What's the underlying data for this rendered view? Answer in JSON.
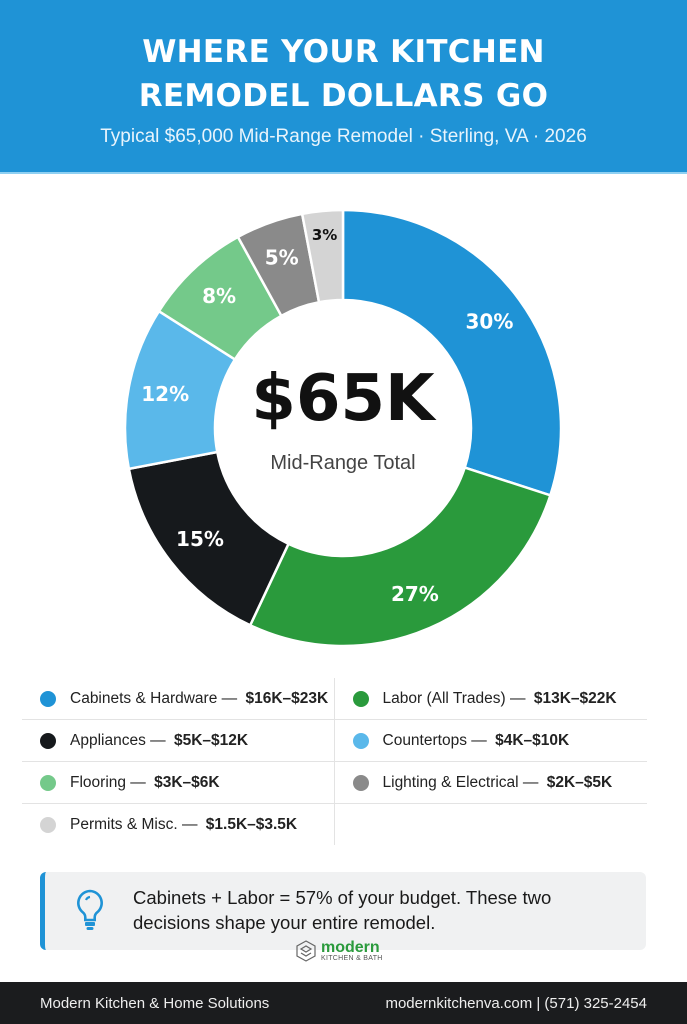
{
  "header": {
    "title_line1": "WHERE YOUR KITCHEN",
    "title_line2": "REMODEL DOLLARS GO",
    "subtitle": "Typical $65,000 Mid-Range Remodel · Sterling, VA · 2026"
  },
  "chart_data": {
    "type": "pie",
    "donut": true,
    "center_value": "$65K",
    "center_label": "Mid-Range Total",
    "slices": [
      {
        "name": "Cabinets & Hardware",
        "range": "$16K–$23K",
        "value": 30,
        "label": "30%",
        "color": "#1f93d6"
      },
      {
        "name": "Labor (All Trades)",
        "range": "$13K–$22K",
        "value": 27,
        "label": "27%",
        "color": "#2a9a3c"
      },
      {
        "name": "Appliances",
        "range": "$5K–$12K",
        "value": 15,
        "label": "15%",
        "color": "#16191c"
      },
      {
        "name": "Countertops",
        "range": "$4K–$10K",
        "value": 12,
        "label": "12%",
        "color": "#5ab8ea"
      },
      {
        "name": "Flooring",
        "range": "$3K–$6K",
        "value": 8,
        "label": "8%",
        "color": "#74c98a"
      },
      {
        "name": "Lighting & Electrical",
        "range": "$2K–$5K",
        "value": 5,
        "label": "5%",
        "color": "#8a8a8a"
      },
      {
        "name": "Permits & Misc.",
        "range": "$1.5K–$3.5K",
        "value": 3,
        "label": "3%",
        "color": "#d4d4d4"
      }
    ]
  },
  "legend_order": [
    0,
    1,
    2,
    3,
    4,
    5,
    6
  ],
  "tip": {
    "text": "Cabinets + Labor = 57% of your budget. These two decisions shape your entire remodel.",
    "icon": "lightbulb-icon"
  },
  "logo": {
    "brand": "modern",
    "tagline": "KITCHEN & BATH"
  },
  "footer": {
    "company": "Modern Kitchen & Home Solutions",
    "contact": "modernkitchenva.com | (571) 325-2454"
  }
}
